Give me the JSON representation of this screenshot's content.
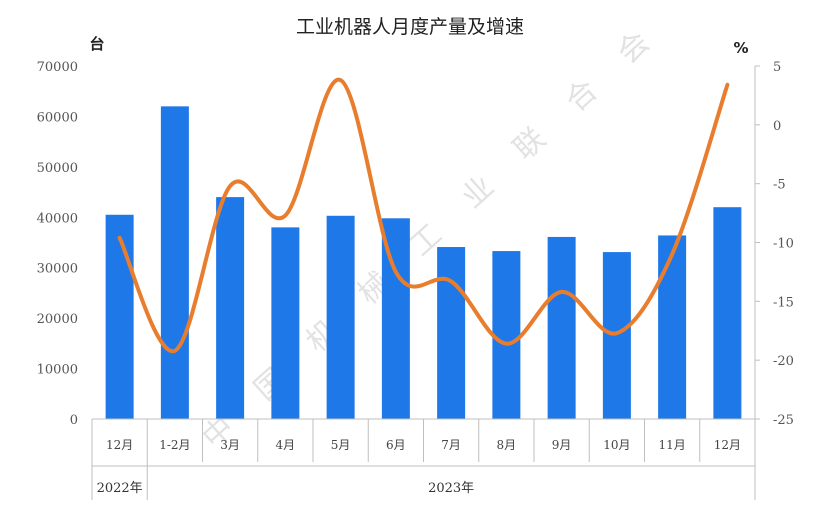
{
  "chart_data": {
    "type": "bar+line",
    "title": "工业机器人月度产量及增速",
    "left_unit": "台",
    "right_unit": "%",
    "categories": [
      "12月",
      "1-2月",
      "3月",
      "4月",
      "5月",
      "6月",
      "7月",
      "8月",
      "9月",
      "10月",
      "11月",
      "12月"
    ],
    "groups": [
      {
        "label": "2022年",
        "from": 0,
        "to": 0
      },
      {
        "label": "2023年",
        "from": 1,
        "to": 11
      }
    ],
    "series": [
      {
        "type": "bar",
        "axis": "left",
        "color": "#1f78e8",
        "values": [
          40500,
          62000,
          44000,
          38000,
          40300,
          39800,
          34100,
          33300,
          36100,
          33100,
          36400,
          42000
        ]
      },
      {
        "type": "line",
        "axis": "right",
        "color": "#e87d2e",
        "values": [
          -9.6,
          -19.2,
          -5.2,
          -7.7,
          3.8,
          -12.5,
          -13.3,
          -18.6,
          -14.2,
          -17.7,
          -11.0,
          3.4
        ]
      }
    ],
    "ylim_left": [
      0,
      70000
    ],
    "yticks_left": [
      "0",
      "10000",
      "20000",
      "30000",
      "40000",
      "50000",
      "60000",
      "70000"
    ],
    "ylim_right": [
      -25,
      5
    ],
    "yticks_right": [
      "-25",
      "-20",
      "-15",
      "-10",
      "-5",
      "0",
      "5"
    ],
    "grid": false,
    "watermark": "中国机械工业联合会"
  }
}
